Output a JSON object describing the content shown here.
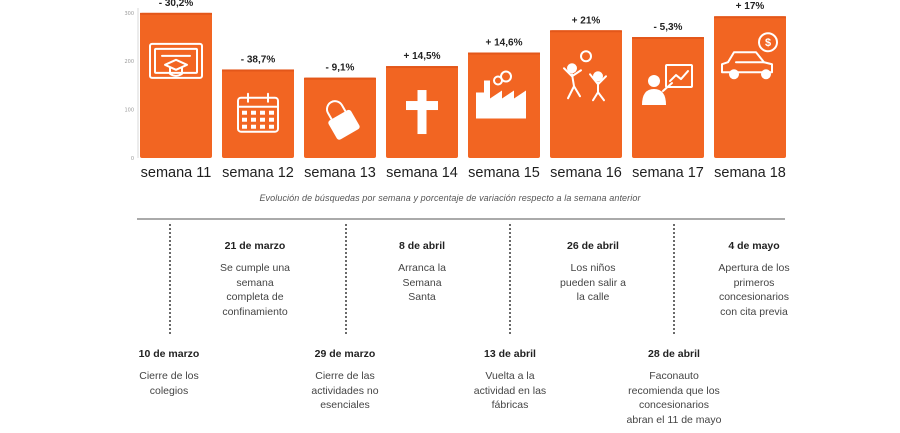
{
  "chart_data": {
    "type": "bar",
    "categories": [
      "semana 11",
      "semana 12",
      "semana 13",
      "semana 14",
      "semana 15",
      "semana 16",
      "semana 17",
      "semana 18"
    ],
    "values": [
      300,
      183,
      166,
      190,
      218,
      264,
      250,
      293
    ],
    "data_labels": [
      "- 30,2%",
      "- 38,7%",
      "- 9,1%",
      "+ 14,5%",
      "+ 14,6%",
      "+ 21%",
      "- 5,3%",
      "+ 17%"
    ],
    "icons": [
      "diploma-icon",
      "calendar-icon",
      "padlock-icon",
      "cross-icon",
      "factory-icon",
      "children-playing-icon",
      "advisor-presentation-icon",
      "car-dollar-icon"
    ],
    "ylim": [
      0,
      310
    ],
    "yticks": [
      {
        "value": 0,
        "label": "0"
      },
      {
        "value": 100,
        "label": "100"
      },
      {
        "value": 200,
        "label": "200"
      },
      {
        "value": 300,
        "label": "300"
      }
    ],
    "bar_color": "#f26522",
    "grid": false,
    "subtitle": "Evolución de búsquedas por semana y porcentaje de variación respecto a la semana anterior"
  },
  "timeline": {
    "events": [
      {
        "date": "10 de marzo",
        "text": "Cierre de los colegios"
      },
      {
        "date": "21 de marzo",
        "text": "Se cumple una semana completa de confinamiento"
      },
      {
        "date": "29 de marzo",
        "text": "Cierre de las actividades no esenciales"
      },
      {
        "date": "8 de abril",
        "text": "Arranca la Semana Santa"
      },
      {
        "date": "13 de abril",
        "text": "Vuelta a la actividad en las fábricas"
      },
      {
        "date": "26 de abril",
        "text": "Los niños pueden salir a la calle"
      },
      {
        "date": "28 de abril",
        "text": "Faconauto recomienda que los concesionarios abran el 11 de mayo"
      },
      {
        "date": "4 de mayo",
        "text": "Apertura de los primeros concesionarios con cita previa"
      }
    ]
  }
}
